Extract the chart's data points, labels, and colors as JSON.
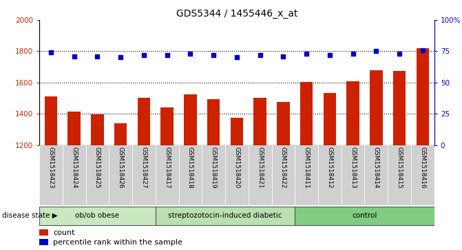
{
  "title": "GDS5344 / 1455446_x_at",
  "samples": [
    "GSM1518423",
    "GSM1518424",
    "GSM1518425",
    "GSM1518426",
    "GSM1518427",
    "GSM1518417",
    "GSM1518418",
    "GSM1518419",
    "GSM1518420",
    "GSM1518421",
    "GSM1518422",
    "GSM1518411",
    "GSM1518412",
    "GSM1518413",
    "GSM1518414",
    "GSM1518415",
    "GSM1518416"
  ],
  "counts": [
    1510,
    1415,
    1395,
    1340,
    1500,
    1440,
    1525,
    1495,
    1375,
    1500,
    1475,
    1605,
    1535,
    1608,
    1680,
    1675,
    1820
  ],
  "percentiles": [
    74,
    71,
    71,
    70,
    72,
    72,
    73,
    72,
    70,
    72,
    71,
    73,
    72,
    73,
    75,
    73,
    76
  ],
  "groups": [
    {
      "label": "ob/ob obese",
      "start": 0,
      "end": 5,
      "color": "#c8e8c0"
    },
    {
      "label": "streptozotocin-induced diabetic",
      "start": 5,
      "end": 11,
      "color": "#b8e0b0"
    },
    {
      "label": "control",
      "start": 11,
      "end": 17,
      "color": "#80cc80"
    }
  ],
  "bar_color": "#cc2200",
  "dot_color": "#0000cc",
  "ylim_left": [
    1200,
    2000
  ],
  "ylim_right": [
    0,
    100
  ],
  "yticks_left": [
    1200,
    1400,
    1600,
    1800,
    2000
  ],
  "yticks_right": [
    0,
    25,
    50,
    75,
    100
  ],
  "ytick_labels_right": [
    "0",
    "25",
    "50",
    "75",
    "100%"
  ],
  "grid_values": [
    1400,
    1600,
    1800
  ],
  "plot_bg": "#ffffff",
  "ticklabel_bg": "#d0d0d0",
  "bar_width": 0.55,
  "disease_state_label": "disease state",
  "legend_count_label": "count",
  "legend_percentile_label": "percentile rank within the sample"
}
